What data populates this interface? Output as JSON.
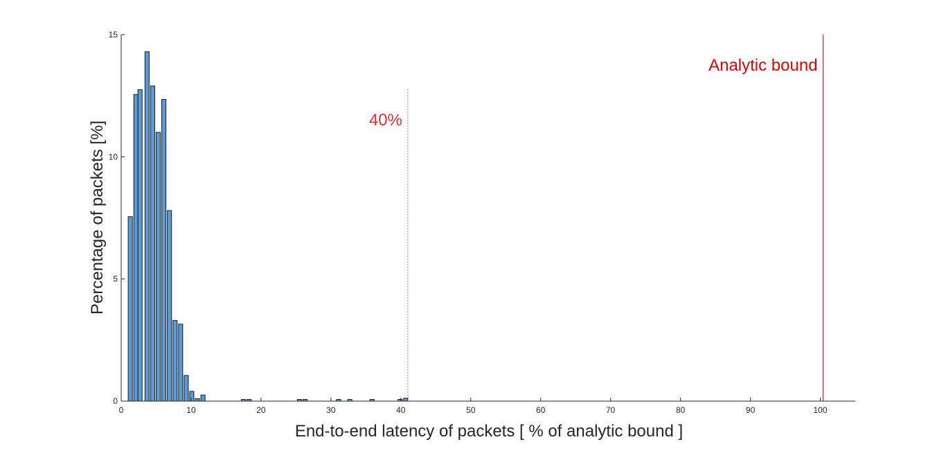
{
  "chart_data": {
    "type": "bar",
    "title": "",
    "xlabel": "End-to-end latency of packets  [ % of analytic bound ]",
    "ylabel": "Percentage of packets [%]",
    "xlim": [
      0,
      105
    ],
    "ylim": [
      0,
      15
    ],
    "xticks": [
      "0",
      "10",
      "20",
      "30",
      "40",
      "50",
      "60",
      "70",
      "80",
      "90",
      "100"
    ],
    "yticks": [
      "0",
      "5",
      "10",
      "15"
    ],
    "grid": false,
    "legend": "none",
    "bin_width": 0.6,
    "bar_color": "#5b9bd5",
    "bars": [
      {
        "x": 1.0,
        "value": 7.55
      },
      {
        "x": 1.6,
        "value": 0.0
      },
      {
        "x": 1.8,
        "value": 12.55
      },
      {
        "x": 2.4,
        "value": 12.75
      },
      {
        "x": 3.4,
        "value": 14.3
      },
      {
        "x": 4.2,
        "value": 12.9
      },
      {
        "x": 5.0,
        "value": 11.0
      },
      {
        "x": 5.8,
        "value": 12.35
      },
      {
        "x": 6.6,
        "value": 7.8
      },
      {
        "x": 7.4,
        "value": 3.3
      },
      {
        "x": 8.2,
        "value": 3.15
      },
      {
        "x": 9.0,
        "value": 1.05
      },
      {
        "x": 9.8,
        "value": 0.4
      },
      {
        "x": 10.6,
        "value": 0.1
      },
      {
        "x": 11.4,
        "value": 0.25
      },
      {
        "x": 17.2,
        "value": 0.07
      },
      {
        "x": 18.0,
        "value": 0.07
      },
      {
        "x": 25.2,
        "value": 0.07
      },
      {
        "x": 26.0,
        "value": 0.07
      },
      {
        "x": 30.8,
        "value": 0.07
      },
      {
        "x": 32.4,
        "value": 0.07
      },
      {
        "x": 35.6,
        "value": 0.07
      },
      {
        "x": 39.6,
        "value": 0.07
      },
      {
        "x": 40.4,
        "value": 0.12
      }
    ],
    "reference_lines": [
      {
        "x": 41,
        "label": "40%",
        "style": "dotted",
        "color": "#e03030",
        "top": 12.75
      },
      {
        "x": 100.4,
        "label": "Analytic bound",
        "style": "solid",
        "color": "#e00000",
        "top": 15
      }
    ]
  }
}
